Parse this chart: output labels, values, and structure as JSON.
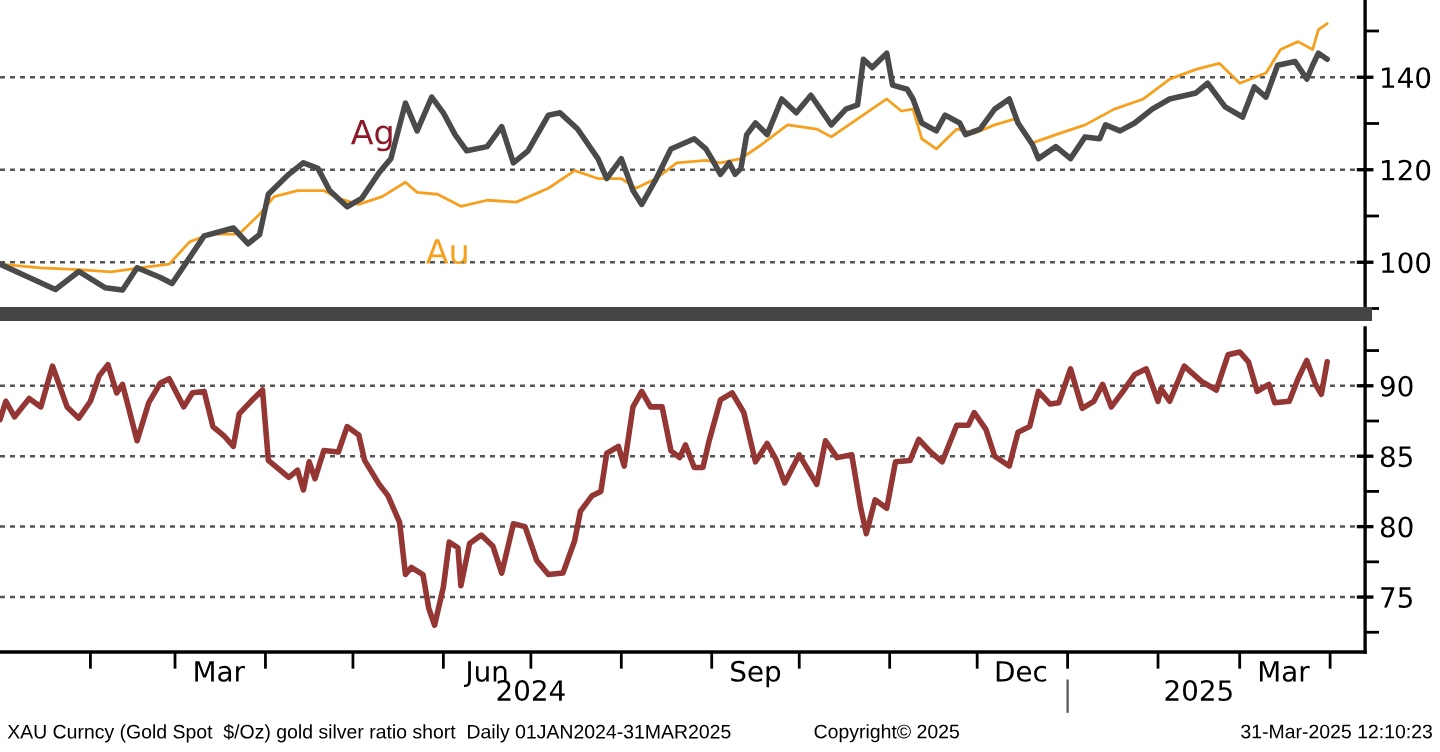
{
  "chart_data": [
    {
      "type": "line",
      "xlim": [
        "2024-01-01",
        "2025-04-13"
      ],
      "ylim": [
        88.8,
        156.7
      ],
      "yticks": [
        {
          "value": 90,
          "label": null
        },
        100,
        {
          "value": 110,
          "label": null
        },
        120,
        {
          "value": 130,
          "label": null
        },
        140,
        {
          "value": 150,
          "label": null
        }
      ],
      "grid": "y",
      "tick_labels": "y",
      "series": [
        {
          "color": "#4a4a4a",
          "x": [
            "2024-01-01",
            "2024-01-11",
            "2024-01-20",
            "2024-01-28",
            "2024-02-06",
            "2024-02-12",
            "2024-02-17",
            "2024-02-25",
            "2024-02-29",
            "2024-03-06",
            "2024-03-11",
            "2024-03-21",
            "2024-03-26",
            "2024-03-30",
            "2024-04-02",
            "2024-04-09",
            "2024-04-14",
            "2024-04-19",
            "2024-04-23",
            "2024-04-29",
            "2024-05-04",
            "2024-05-10",
            "2024-05-14",
            "2024-05-19",
            "2024-05-23",
            "2024-05-28",
            "2024-06-01",
            "2024-06-05",
            "2024-06-09",
            "2024-06-16",
            "2024-06-21",
            "2024-06-25",
            "2024-06-30",
            "2024-07-07",
            "2024-07-11",
            "2024-07-17",
            "2024-07-24",
            "2024-07-27",
            "2024-08-01",
            "2024-08-05",
            "2024-08-08",
            "2024-08-13",
            "2024-08-18",
            "2024-08-26",
            "2024-08-30",
            "2024-09-01",
            "2024-09-04",
            "2024-09-07",
            "2024-09-09",
            "2024-09-11",
            "2024-09-13",
            "2024-09-16",
            "2024-09-20",
            "2024-09-25",
            "2024-09-30",
            "2024-10-05",
            "2024-10-12",
            "2024-10-17",
            "2024-10-21",
            "2024-10-23",
            "2024-10-26",
            "2024-10-31",
            "2024-11-02",
            "2024-11-07",
            "2024-11-09",
            "2024-11-12",
            "2024-11-17",
            "2024-11-20",
            "2024-11-25",
            "2024-11-27",
            "2024-12-02",
            "2024-12-07",
            "2024-12-12",
            "2024-12-15",
            "2024-12-20",
            "2024-12-22",
            "2024-12-28",
            "2025-01-02",
            "2025-01-07",
            "2025-01-12",
            "2025-01-14",
            "2025-01-19",
            "2025-01-24",
            "2025-01-30",
            "2025-02-05",
            "2025-02-14",
            "2025-02-18",
            "2025-02-24",
            "2025-03-02",
            "2025-03-06",
            "2025-03-10",
            "2025-03-14",
            "2025-03-20",
            "2025-03-24",
            "2025-03-26",
            "2025-03-28",
            "2025-03-31"
          ],
          "values": [
            99.6,
            96.7,
            94.1,
            98,
            94.5,
            94,
            98.8,
            96.7,
            95.4,
            101,
            105.7,
            107.4,
            104,
            106,
            114.7,
            119,
            121.5,
            120.3,
            115.5,
            112,
            113.8,
            119.4,
            122.4,
            134.4,
            128.4,
            135.7,
            132.3,
            127.6,
            124.1,
            125,
            129.3,
            121.5,
            124.1,
            131.8,
            132.3,
            128.8,
            122.4,
            118.1,
            122.4,
            115.5,
            112.5,
            118.1,
            124.5,
            126.7,
            124.5,
            122.4,
            119,
            121.5,
            119,
            120.3,
            127.6,
            130.1,
            127.6,
            135.3,
            132.3,
            136.1,
            129.7,
            133.1,
            134,
            143.9,
            142.1,
            145.2,
            138.3,
            137.4,
            135.3,
            130.1,
            128.4,
            131.8,
            130.1,
            127.6,
            128.8,
            133.1,
            135.3,
            130.1,
            125.4,
            122.4,
            125,
            122.4,
            127.1,
            126.7,
            129.7,
            128.4,
            130.1,
            133.1,
            135.3,
            136.6,
            138.7,
            133.6,
            131.4,
            137.9,
            135.7,
            142.6,
            143.4,
            139.6,
            142.6,
            145.2,
            143.9
          ]
        },
        {
          "color": "#f5a01e",
          "x": [
            "2024-01-01",
            "2024-01-15",
            "2024-01-28",
            "2024-02-08",
            "2024-02-18",
            "2024-02-28",
            "2024-03-06",
            "2024-03-13",
            "2024-03-23",
            "2024-03-30",
            "2024-04-04",
            "2024-04-12",
            "2024-04-21",
            "2024-04-26",
            "2024-05-03",
            "2024-05-11",
            "2024-05-19",
            "2024-05-23",
            "2024-05-30",
            "2024-06-07",
            "2024-06-16",
            "2024-06-26",
            "2024-07-07",
            "2024-07-16",
            "2024-07-24",
            "2024-08-01",
            "2024-08-06",
            "2024-08-13",
            "2024-08-20",
            "2024-08-30",
            "2024-09-04",
            "2024-09-11",
            "2024-09-18",
            "2024-09-27",
            "2024-10-07",
            "2024-10-12",
            "2024-10-21",
            "2024-10-31",
            "2024-11-05",
            "2024-11-09",
            "2024-11-12",
            "2024-11-17",
            "2024-11-24",
            "2024-11-30",
            "2024-12-07",
            "2024-12-14",
            "2024-12-20",
            "2024-12-28",
            "2025-01-07",
            "2025-01-17",
            "2025-01-27",
            "2025-02-05",
            "2025-02-14",
            "2025-02-22",
            "2025-03-01",
            "2025-03-10",
            "2025-03-15",
            "2025-03-21",
            "2025-03-26",
            "2025-03-28",
            "2025-03-31"
          ],
          "values": [
            99.6,
            98.8,
            98.4,
            97.9,
            98.8,
            99.6,
            104.4,
            106.1,
            106.1,
            110.4,
            114.2,
            115.5,
            115.5,
            113.8,
            112.5,
            114.2,
            117.3,
            115.1,
            114.7,
            112.1,
            113.4,
            113,
            116,
            119.8,
            118.1,
            118.1,
            116,
            118.1,
            121.5,
            122,
            121.5,
            122.4,
            125.4,
            129.7,
            128.8,
            127.1,
            131,
            135.3,
            132.7,
            133.1,
            126.7,
            124.5,
            128.8,
            127.9,
            129.7,
            131,
            125.8,
            127.6,
            129.7,
            133.1,
            135.3,
            139.6,
            141.7,
            143,
            138.7,
            140.9,
            146,
            147.7,
            146,
            150.3,
            151.6
          ]
        }
      ],
      "annotations": [
        "Ag",
        "Au"
      ]
    },
    {
      "type": "line",
      "xlim": [
        "2024-01-01",
        "2025-04-13"
      ],
      "ylim": [
        71.1,
        94.1
      ],
      "yticks": [
        {
          "value": 72.5,
          "label": null
        },
        75,
        {
          "value": 77.5,
          "label": null
        },
        80,
        {
          "value": 82.5,
          "label": null
        },
        85,
        {
          "value": 87.5,
          "label": null
        },
        90,
        {
          "value": 92.5,
          "label": null
        }
      ],
      "grid": "y",
      "xticks": [
        {
          "value": "2024-02-01",
          "label": null
        },
        {
          "value": "2024-03-01",
          "label": null
        },
        {
          "value": "2024-03-16",
          "label": "Mar"
        },
        {
          "value": "2024-04-01",
          "label": null
        },
        {
          "value": "2024-05-01",
          "label": null
        },
        {
          "value": "2024-06-01",
          "label": null
        },
        {
          "value": "2024-06-16",
          "label": "Jun"
        },
        {
          "value": "2024-07-01",
          "label": null
        },
        {
          "value": "2024-08-01",
          "label": null
        },
        {
          "value": "2024-09-01",
          "label": null
        },
        {
          "value": "2024-09-16",
          "label": "Sep"
        },
        {
          "value": "2024-10-01",
          "label": null
        },
        {
          "value": "2024-11-01",
          "label": null
        },
        {
          "value": "2024-12-01",
          "label": null
        },
        {
          "value": "2024-12-16",
          "label": "Dec"
        },
        {
          "value": "2025-01-01",
          "label": null
        },
        {
          "value": "2025-02-01",
          "label": null
        },
        {
          "value": "2025-03-01",
          "label": null
        },
        {
          "value": "2025-03-16",
          "label": "Mar"
        },
        {
          "value": "2025-04-01",
          "label": null
        }
      ],
      "x2lim": [
        "2024-01-01",
        "2025-04-13"
      ],
      "x2ticks": [
        {
          "value": "2024-07-01",
          "label": "2024"
        },
        {
          "value": "2025-01-01",
          "label": null
        },
        {
          "value": "2025-02-15",
          "label": "2025"
        }
      ],
      "series": [
        {
          "color": "#943634",
          "x": [
            "2024-01-01",
            "2024-01-03",
            "2024-01-06",
            "2024-01-11",
            "2024-01-15",
            "2024-01-19",
            "2024-01-24",
            "2024-01-28",
            "2024-02-01",
            "2024-02-04",
            "2024-02-07",
            "2024-02-10",
            "2024-02-12",
            "2024-02-17",
            "2024-02-21",
            "2024-02-25",
            "2024-02-28",
            "2024-03-04",
            "2024-03-07",
            "2024-03-11",
            "2024-03-14",
            "2024-03-18",
            "2024-03-21",
            "2024-03-23",
            "2024-03-28",
            "2024-03-31",
            "2024-04-02",
            "2024-04-09",
            "2024-04-12",
            "2024-04-14",
            "2024-04-16",
            "2024-04-18",
            "2024-04-21",
            "2024-04-26",
            "2024-04-29",
            "2024-05-03",
            "2024-05-05",
            "2024-05-10",
            "2024-05-13",
            "2024-05-17",
            "2024-05-19",
            "2024-05-21",
            "2024-05-25",
            "2024-05-27",
            "2024-05-29",
            "2024-06-01",
            "2024-06-03",
            "2024-06-06",
            "2024-06-07",
            "2024-06-10",
            "2024-06-14",
            "2024-06-18",
            "2024-06-21",
            "2024-06-25",
            "2024-06-29",
            "2024-07-03",
            "2024-07-07",
            "2024-07-12",
            "2024-07-16",
            "2024-07-18",
            "2024-07-22",
            "2024-07-25",
            "2024-07-27",
            "2024-07-31",
            "2024-08-02",
            "2024-08-05",
            "2024-08-08",
            "2024-08-11",
            "2024-08-15",
            "2024-08-18",
            "2024-08-21",
            "2024-08-23",
            "2024-08-26",
            "2024-08-29",
            "2024-08-31",
            "2024-09-04",
            "2024-09-08",
            "2024-09-12",
            "2024-09-16",
            "2024-09-20",
            "2024-09-23",
            "2024-09-26",
            "2024-10-01",
            "2024-10-07",
            "2024-10-10",
            "2024-10-14",
            "2024-10-19",
            "2024-10-22",
            "2024-10-24",
            "2024-10-27",
            "2024-10-31",
            "2024-11-03",
            "2024-11-08",
            "2024-11-11",
            "2024-11-15",
            "2024-11-19",
            "2024-11-24",
            "2024-11-28",
            "2024-11-30",
            "2024-12-04",
            "2024-12-07",
            "2024-12-12",
            "2024-12-15",
            "2024-12-19",
            "2024-12-22",
            "2024-12-26",
            "2024-12-29",
            "2025-01-02",
            "2025-01-06",
            "2025-01-10",
            "2025-01-13",
            "2025-01-16",
            "2025-01-20",
            "2025-01-24",
            "2025-01-28",
            "2025-02-01",
            "2025-02-02",
            "2025-02-05",
            "2025-02-10",
            "2025-02-16",
            "2025-02-21",
            "2025-02-25",
            "2025-03-01",
            "2025-03-04",
            "2025-03-07",
            "2025-03-11",
            "2025-03-13",
            "2025-03-18",
            "2025-03-21",
            "2025-03-24",
            "2025-03-27",
            "2025-03-29",
            "2025-03-31"
          ],
          "values": [
            87.6,
            88.9,
            87.8,
            89.1,
            88.5,
            91.4,
            88.5,
            87.7,
            88.9,
            90.7,
            91.5,
            89.5,
            90.1,
            86.1,
            88.8,
            90.2,
            90.5,
            88.5,
            89.5,
            89.6,
            87.1,
            86.4,
            85.7,
            88,
            89.1,
            89.7,
            84.7,
            83.5,
            84,
            82.6,
            84.6,
            83.4,
            85.4,
            85.3,
            87.1,
            86.5,
            84.7,
            83,
            82.2,
            80.3,
            76.6,
            77.1,
            76.6,
            74.2,
            73,
            75.7,
            78.9,
            78.5,
            75.8,
            78.8,
            79.4,
            78.6,
            76.7,
            80.2,
            80,
            77.6,
            76.6,
            76.7,
            79,
            81.1,
            82.2,
            82.5,
            85.2,
            85.7,
            84.3,
            88.5,
            89.6,
            88.5,
            88.5,
            85.4,
            84.9,
            85.8,
            84.2,
            84.2,
            86,
            89,
            89.5,
            88.1,
            84.6,
            85.9,
            84.8,
            83.1,
            85.1,
            83,
            86.1,
            84.9,
            85.1,
            81.4,
            79.5,
            81.9,
            81.3,
            84.6,
            84.7,
            86.2,
            85.3,
            84.6,
            87.2,
            87.2,
            88.1,
            86.9,
            85,
            84.3,
            86.7,
            87.1,
            89.6,
            88.7,
            88.8,
            91.2,
            88.4,
            88.9,
            90.1,
            88.5,
            89.6,
            90.8,
            91.2,
            88.9,
            89.8,
            88.9,
            91.4,
            90.3,
            89.7,
            92.2,
            92.4,
            91.7,
            89.6,
            90.1,
            88.8,
            88.9,
            90.5,
            91.8,
            90.1,
            89.4,
            91.7
          ]
        }
      ],
      "annotations": [
        "XAU Curncy (Gold Spot  $/Oz) gold silver ratio short  Daily 01JAN2024-31MAR2025",
        "Copyright© 2025",
        "31-Mar-2025 12:10:23"
      ]
    }
  ]
}
